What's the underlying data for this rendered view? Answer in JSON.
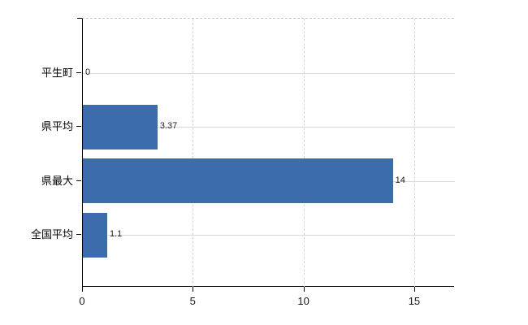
{
  "chart_data": {
    "type": "bar",
    "orientation": "horizontal",
    "title": "",
    "xlabel": "",
    "ylabel": "",
    "categories": [
      "平生町",
      "県平均",
      "県最大",
      "全国平均"
    ],
    "values": [
      0,
      3.37,
      14,
      1.1
    ],
    "value_labels": [
      "0",
      "3.37",
      "14",
      "1.1"
    ],
    "x_ticks": [
      "0",
      "5",
      "10",
      "15"
    ],
    "x_tick_values": [
      0,
      5,
      10,
      15
    ],
    "xlim": [
      0,
      16.8
    ],
    "grid": true,
    "legend": "none",
    "colors": {
      "bar": "#3c6cac",
      "axis": "#000000",
      "grid_horizontal": "#d5ddd5",
      "grid_vertical": "#d6d2d6",
      "plot_top_border": "#c9c9c9",
      "value_label_text": "#222222",
      "category_label_text": "#000000",
      "tick_label_text": "#1a1a1a",
      "background": "#ffffff"
    }
  }
}
